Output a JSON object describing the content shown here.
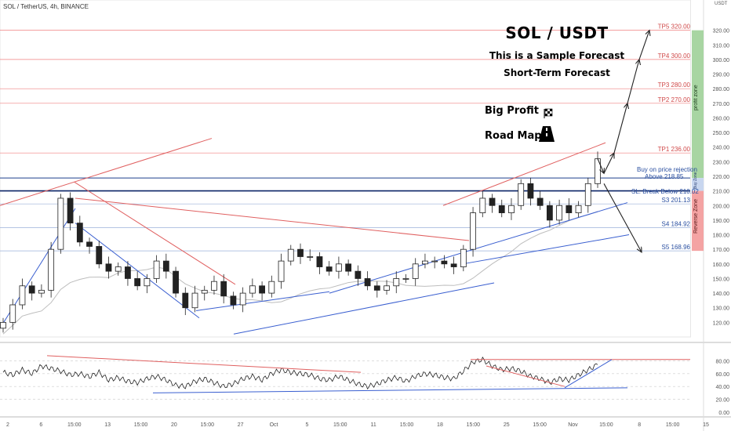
{
  "header": {
    "symbol_text": "SOL / TetherUS, 4h, BINANCE",
    "currency": "USDT"
  },
  "annotations": {
    "title": "SOL / USDT",
    "subtitle": "This is a Sample Forecast",
    "subtitle2": "Short-Term Forecast",
    "big_profit": "Big Profit",
    "road_map": "Road Map",
    "profit_zone": "profit zone",
    "buy_zone": "Buy Zone",
    "reverse_zone": "Reverse Zone",
    "buy_rejection": "Buy on price rejection",
    "above": "Above 218.85",
    "sl": "SL: Break Below 210.02",
    "flag_icon": "checkered-flag-icon",
    "road_icon": "road-icon"
  },
  "colors": {
    "up": "#26a69a",
    "down": "#ef5350",
    "candle": "#222222",
    "target_line": "#f08080",
    "support_line": "#2a5bd7",
    "profit_zone": "#a8d5a2",
    "reverse_zone": "#f4a3a3",
    "buy_zone": "#c8d6ef"
  },
  "chart_data": [
    {
      "type": "line",
      "name_hint": "price",
      "ylim": [
        110,
        330
      ],
      "y_ticks": [
        120,
        130,
        140,
        150,
        160,
        170,
        180,
        190,
        200,
        210,
        220,
        230,
        240,
        250,
        260,
        270,
        280,
        290,
        300,
        310,
        320
      ],
      "x_ticks": [
        "2",
        "6",
        "15:00",
        "13",
        "15:00",
        "20",
        "15:00",
        "27",
        "Oct",
        "5",
        "15:00",
        "11",
        "15:00",
        "18",
        "15:00",
        "25",
        "15:00",
        "Nov",
        "15:00",
        "8",
        "15:00",
        "15"
      ],
      "x": [
        "Sep 2",
        "Sep 3",
        "Sep 4",
        "Sep 5",
        "Sep 6",
        "Sep 7",
        "Sep 8",
        "Sep 9",
        "Sep 10",
        "Sep 11",
        "Sep 12",
        "Sep 13",
        "Sep 14",
        "Sep 15",
        "Sep 16",
        "Sep 17",
        "Sep 18",
        "Sep 19",
        "Sep 20",
        "Sep 21",
        "Sep 22",
        "Sep 23",
        "Sep 24",
        "Sep 25",
        "Sep 26",
        "Sep 27",
        "Sep 28",
        "Sep 29",
        "Sep 30",
        "Oct 1",
        "Oct 2",
        "Oct 3",
        "Oct 4",
        "Oct 5",
        "Oct 6",
        "Oct 7",
        "Oct 8",
        "Oct 9",
        "Oct 10",
        "Oct 11",
        "Oct 12",
        "Oct 13",
        "Oct 14",
        "Oct 15",
        "Oct 16",
        "Oct 17",
        "Oct 18",
        "Oct 19",
        "Oct 20",
        "Oct 21",
        "Oct 22",
        "Oct 23",
        "Oct 24",
        "Oct 25",
        "Oct 26",
        "Oct 27",
        "Oct 28",
        "Oct 29",
        "Oct 30",
        "Oct 31",
        "Nov 1",
        "Nov 2",
        "Nov 3"
      ],
      "close": [
        120,
        132,
        145,
        140,
        142,
        170,
        205,
        188,
        175,
        172,
        160,
        155,
        158,
        150,
        145,
        150,
        162,
        155,
        140,
        130,
        140,
        142,
        148,
        138,
        132,
        140,
        145,
        140,
        148,
        162,
        170,
        165,
        165,
        158,
        155,
        160,
        155,
        150,
        145,
        142,
        145,
        150,
        150,
        160,
        162,
        162,
        160,
        158,
        170,
        195,
        205,
        200,
        195,
        200,
        215,
        205,
        200,
        190,
        200,
        195,
        200,
        215,
        232
      ],
      "levels": [
        {
          "label": "TP5 320.00",
          "value": 320.0
        },
        {
          "label": "TP4 300.00",
          "value": 300.0
        },
        {
          "label": "TP3 280.00",
          "value": 280.0
        },
        {
          "label": "TP2 270.00",
          "value": 270.0
        },
        {
          "label": "TP1 236.00",
          "value": 236.0
        },
        {
          "label": "S3 201.13",
          "value": 201.13
        },
        {
          "label": "S4 184.92",
          "value": 184.92
        },
        {
          "label": "S5 168.96",
          "value": 168.96
        }
      ],
      "buy_level": 218.85,
      "sl_level": 210.02,
      "price_path": [
        [
          232,
          236
        ],
        [
          243,
          270
        ],
        [
          253,
          300
        ],
        [
          263,
          320
        ]
      ]
    },
    {
      "type": "line",
      "name_hint": "oscillator",
      "ylim": [
        0,
        100
      ],
      "y_ticks": [
        "0.00",
        "20.00",
        "40.00",
        "60.00",
        "80.00"
      ],
      "values": [
        62,
        58,
        66,
        60,
        72,
        68,
        64,
        58,
        60,
        55,
        62,
        50,
        54,
        48,
        46,
        52,
        56,
        50,
        42,
        40,
        48,
        52,
        46,
        40,
        44,
        52,
        56,
        50,
        60,
        66,
        62,
        60,
        58,
        52,
        50,
        56,
        50,
        44,
        40,
        44,
        50,
        54,
        48,
        56,
        60,
        58,
        54,
        52,
        64,
        78,
        82,
        72,
        66,
        68,
        64,
        56,
        52,
        46,
        52,
        50,
        58,
        66,
        74
      ]
    }
  ]
}
